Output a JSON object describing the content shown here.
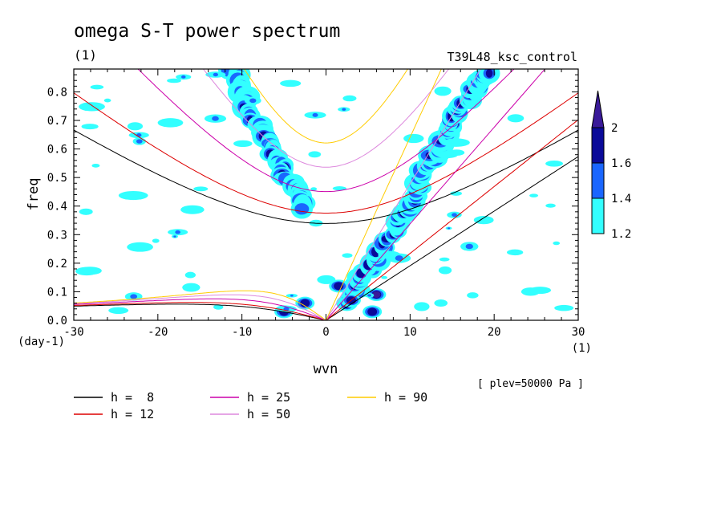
{
  "chart_data": {
    "type": "contour",
    "title": "omega S-T power spectrum",
    "subtitle": "(1)",
    "experiment": "T39L48_ksc_control",
    "xlabel": "wvn",
    "ylabel": "freq",
    "x_unit_label": "(1)",
    "y_unit_label": "(day-1)",
    "footnote": "[ plev=50000 Pa ]",
    "xlim": [
      -30,
      30
    ],
    "ylim": [
      0,
      0.88
    ],
    "xticks": [
      -30,
      -20,
      -10,
      0,
      10,
      20,
      30
    ],
    "xtick_labels": [
      "-30",
      "-20",
      "-10",
      "0",
      "10",
      "20",
      "30"
    ],
    "yticks": [
      0,
      0.1,
      0.2,
      0.3,
      0.4,
      0.5,
      0.6,
      0.7,
      0.8
    ],
    "ytick_labels": [
      "0.0",
      "0.1",
      "0.2",
      "0.3",
      "0.4",
      "0.5",
      "0.6",
      "0.7",
      "0.8"
    ],
    "colorbar": {
      "levels": [
        1.2,
        1.4,
        1.6,
        2
      ],
      "labels": [
        "1.2",
        "1.4",
        "1.6",
        "2"
      ],
      "colors": [
        "#33ffff",
        "#1a66ff",
        "#0a0a99",
        "#3a1a99"
      ]
    },
    "dispersion_curves": [
      {
        "label": "h =  8",
        "h": 8,
        "color": "#000000"
      },
      {
        "label": "h = 12",
        "h": 12,
        "color": "#dd0000"
      },
      {
        "label": "h = 25",
        "h": 25,
        "color": "#cc00aa"
      },
      {
        "label": "h = 50",
        "h": 50,
        "color": "#dd88dd"
      },
      {
        "label": "h = 90",
        "h": 90,
        "color": "#ffcc00"
      }
    ],
    "contour_regions": [
      {
        "name": "kelvin-band",
        "level": 1.6,
        "x": [
          2.5,
          3.5,
          5,
          6.5,
          8,
          9,
          10,
          11,
          12,
          13,
          14,
          15,
          16,
          17,
          18,
          19,
          20
        ],
        "y": [
          0.06,
          0.12,
          0.18,
          0.24,
          0.3,
          0.36,
          0.42,
          0.48,
          0.54,
          0.59,
          0.64,
          0.69,
          0.74,
          0.78,
          0.82,
          0.85,
          0.87
        ]
      },
      {
        "name": "rossby-band",
        "level": 1.6,
        "x": [
          -11,
          -10,
          -9,
          -8,
          -7,
          -6,
          -5,
          -4,
          -3,
          -2.5
        ],
        "y": [
          0.88,
          0.8,
          0.73,
          0.67,
          0.62,
          0.57,
          0.52,
          0.47,
          0.42,
          0.38
        ]
      }
    ]
  }
}
